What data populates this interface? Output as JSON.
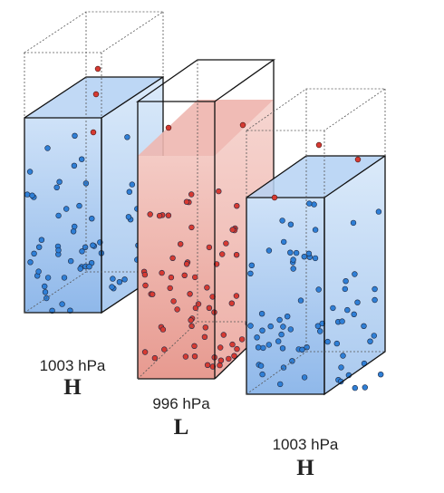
{
  "columns": [
    {
      "id": "left",
      "pressure": "1003 hPa",
      "system": "H",
      "air_fill_fraction": 0.72,
      "fill_color": "#9ec3ee",
      "molecule_color": "#2f7fd6"
    },
    {
      "id": "center",
      "pressure": "996 hPa",
      "system": "L",
      "air_fill_fraction": 0.82,
      "fill_color": "#eeaba3",
      "molecule_color": "#d63a32"
    },
    {
      "id": "right",
      "pressure": "1003 hPa",
      "system": "H",
      "air_fill_fraction": 0.68,
      "fill_color": "#9ec3ee",
      "molecule_color": "#2f7fd6"
    }
  ],
  "colors": {
    "escaped_molecule": "#d63a32",
    "outline": "#111111",
    "dotted_outline": "#444444"
  }
}
